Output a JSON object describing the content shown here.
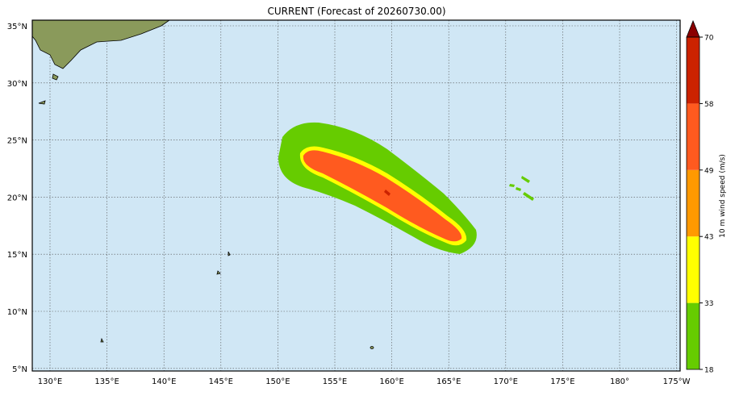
{
  "map": {
    "title": "CURRENT (Forecast of 20260730.00)",
    "lon_labels": [
      "130°E",
      "135°E",
      "140°E",
      "145°E",
      "150°E",
      "155°E",
      "160°E",
      "165°E",
      "170°E",
      "175°E",
      "180°",
      "175°W"
    ],
    "lat_labels": [
      "35°N",
      "30°N",
      "25°N",
      "20°N",
      "15°N",
      "10°N",
      "5°N"
    ],
    "colorbar": {
      "label": "10 m wind speed (m/s)",
      "ticks": [
        18,
        33,
        43,
        49,
        58,
        70
      ],
      "colors": [
        "#66cc00",
        "#ffff00",
        "#ff9900",
        "#ff5a1f",
        "#cc2200"
      ],
      "extend_color": "#8b0000"
    }
  }
}
